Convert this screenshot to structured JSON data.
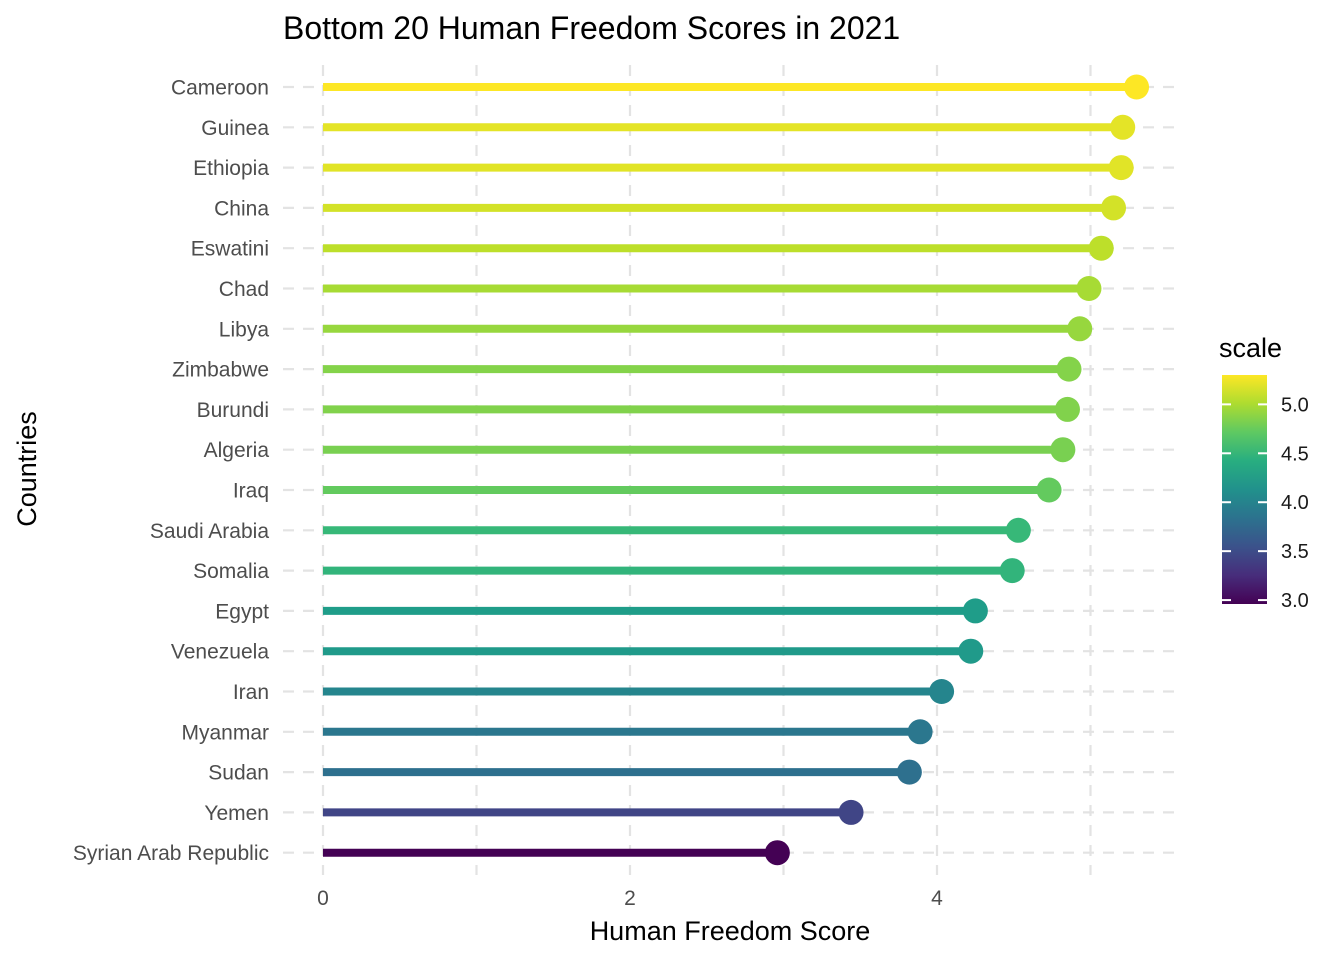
{
  "chart_data": {
    "type": "lollipop",
    "title": "Bottom 20 Human Freedom Scores in 2021",
    "xlabel": "Human Freedom Score",
    "ylabel": "Countries",
    "xlim": [
      0,
      5.3
    ],
    "x_ticks": [
      0,
      2,
      4
    ],
    "x_tick_labels": [
      "0",
      "2",
      "4"
    ],
    "grid": true,
    "categories": [
      "Cameroon",
      "Guinea",
      "Ethiopia",
      "China",
      "Eswatini",
      "Chad",
      "Libya",
      "Zimbabwe",
      "Burundi",
      "Algeria",
      "Iraq",
      "Saudi Arabia",
      "Somalia",
      "Egypt",
      "Venezuela",
      "Iran",
      "Myanmar",
      "Sudan",
      "Yemen",
      "Syrian Arab Republic"
    ],
    "values": [
      5.3,
      5.21,
      5.2,
      5.15,
      5.07,
      4.99,
      4.93,
      4.86,
      4.85,
      4.82,
      4.73,
      4.53,
      4.49,
      4.25,
      4.22,
      4.03,
      3.89,
      3.82,
      3.44,
      2.96
    ],
    "legend": {
      "title": "scale",
      "placement": "right",
      "colormap": "viridis",
      "range": [
        2.96,
        5.3
      ],
      "ticks": [
        3.0,
        3.5,
        4.0,
        4.5,
        5.0
      ],
      "tick_labels": [
        "3.0",
        "3.5",
        "4.0",
        "4.5",
        "5.0"
      ]
    }
  }
}
